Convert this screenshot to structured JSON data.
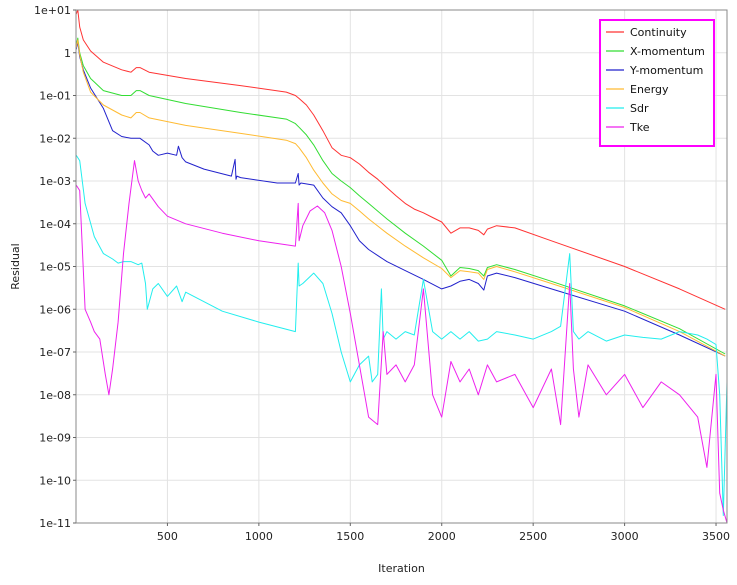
{
  "chart_data": {
    "type": "line",
    "title": "",
    "xlabel": "Iteration",
    "ylabel": "Residual",
    "xlim": [
      0,
      3560
    ],
    "ylim": [
      1e-11,
      10
    ],
    "yscale": "log",
    "grid": true,
    "legend_position": "top-right",
    "legend_border_color": "#ff00ff",
    "x_ticks": [
      500,
      1000,
      1500,
      2000,
      2500,
      3000,
      3500
    ],
    "x_tick_labels": [
      "500",
      "1000",
      "1500",
      "2000",
      "2500",
      "3000",
      "3500"
    ],
    "y_ticks": [
      1e-11,
      1e-10,
      1e-09,
      1e-08,
      1e-07,
      1e-06,
      1e-05,
      0.0001,
      0.001,
      0.01,
      0.1,
      1,
      10
    ],
    "y_tick_labels": [
      "1e-11",
      "1e-10",
      "1e-09",
      "1e-08",
      "1e-07",
      "1e-06",
      "1e-05",
      "1e-04",
      "1e-03",
      "1e-02",
      "1e-01",
      "1",
      "1e+01"
    ],
    "series": [
      {
        "name": "Continuity",
        "color": "#ff3333",
        "x": [
          1,
          10,
          20,
          40,
          80,
          150,
          250,
          300,
          330,
          350,
          400,
          600,
          900,
          1150,
          1200,
          1220,
          1260,
          1300,
          1350,
          1400,
          1450,
          1500,
          1550,
          1600,
          1650,
          1700,
          1750,
          1800,
          1850,
          1900,
          1950,
          2000,
          2050,
          2100,
          2150,
          2200,
          2230,
          2250,
          2300,
          2400,
          2600,
          3000,
          3300,
          3550
        ],
        "y": [
          8,
          10,
          4,
          2,
          1.1,
          0.6,
          0.4,
          0.35,
          0.45,
          0.45,
          0.35,
          0.25,
          0.17,
          0.12,
          0.1,
          0.085,
          0.06,
          0.035,
          0.015,
          0.006,
          0.004,
          0.0035,
          0.0025,
          0.0016,
          0.0011,
          0.0007,
          0.00045,
          0.0003,
          0.00022,
          0.00018,
          0.00014,
          0.00011,
          6e-05,
          8e-05,
          8e-05,
          7e-05,
          5.5e-05,
          7.5e-05,
          9e-05,
          8e-05,
          4e-05,
          1e-05,
          3e-06,
          1e-06
        ]
      },
      {
        "name": "X-momentum",
        "color": "#33dd33",
        "x": [
          1,
          10,
          20,
          40,
          80,
          150,
          250,
          300,
          330,
          350,
          400,
          600,
          900,
          1150,
          1200,
          1220,
          1260,
          1300,
          1350,
          1400,
          1450,
          1500,
          1550,
          1600,
          1700,
          1800,
          1900,
          2000,
          2050,
          2100,
          2150,
          2200,
          2230,
          2250,
          2300,
          2400,
          2600,
          3000,
          3300,
          3550
        ],
        "y": [
          1.5,
          2.2,
          1,
          0.5,
          0.25,
          0.13,
          0.1,
          0.1,
          0.13,
          0.13,
          0.1,
          0.065,
          0.04,
          0.028,
          0.022,
          0.018,
          0.012,
          0.007,
          0.003,
          0.0015,
          0.001,
          0.0007,
          0.00045,
          0.0003,
          0.00013,
          6e-05,
          3e-05,
          1.4e-05,
          6e-06,
          9.5e-06,
          9e-06,
          8e-06,
          6e-06,
          9.5e-06,
          1.1e-05,
          8.5e-06,
          4.5e-06,
          1.2e-06,
          3.5e-07,
          9e-08
        ]
      },
      {
        "name": "Y-momentum",
        "color": "#2222cc",
        "x": [
          1,
          10,
          20,
          40,
          80,
          150,
          200,
          250,
          300,
          350,
          400,
          420,
          450,
          500,
          550,
          560,
          580,
          600,
          700,
          850,
          870,
          875,
          880,
          900,
          1100,
          1200,
          1215,
          1220,
          1230,
          1300,
          1350,
          1400,
          1450,
          1500,
          1550,
          1600,
          1700,
          1800,
          1900,
          2000,
          2050,
          2100,
          2150,
          2200,
          2230,
          2250,
          2300,
          2400,
          2600,
          3000,
          3300,
          3550
        ],
        "y": [
          1.2,
          1.8,
          0.8,
          0.4,
          0.15,
          0.05,
          0.015,
          0.011,
          0.01,
          0.01,
          0.007,
          0.005,
          0.004,
          0.0045,
          0.004,
          0.0065,
          0.0035,
          0.0028,
          0.0019,
          0.0013,
          0.0032,
          0.0011,
          0.0013,
          0.0012,
          0.0009,
          0.0009,
          0.0015,
          0.0008,
          0.0009,
          0.0008,
          0.0004,
          0.00025,
          0.00018,
          9e-05,
          4e-05,
          2.5e-05,
          1.3e-05,
          8e-06,
          5e-06,
          3e-06,
          3.5e-06,
          4.5e-06,
          5e-06,
          4e-06,
          2.8e-06,
          6e-06,
          7e-06,
          5.5e-06,
          3e-06,
          9e-07,
          2.5e-07,
          8e-08
        ]
      },
      {
        "name": "Energy",
        "color": "#ffbb33",
        "x": [
          1,
          10,
          20,
          40,
          80,
          150,
          250,
          300,
          330,
          350,
          400,
          600,
          900,
          1150,
          1200,
          1220,
          1260,
          1300,
          1350,
          1400,
          1450,
          1500,
          1550,
          1600,
          1700,
          1800,
          1900,
          2000,
          2050,
          2100,
          2150,
          2200,
          2230,
          2250,
          2300,
          2400,
          2600,
          3000,
          3300,
          3550
        ],
        "y": [
          1.3,
          2,
          0.9,
          0.35,
          0.12,
          0.06,
          0.035,
          0.03,
          0.04,
          0.04,
          0.03,
          0.02,
          0.013,
          0.009,
          0.0075,
          0.006,
          0.0035,
          0.0018,
          0.0009,
          0.0005,
          0.00035,
          0.0003,
          0.0002,
          0.00013,
          6e-05,
          3e-05,
          1.6e-05,
          9e-06,
          5.5e-06,
          8e-06,
          7.5e-06,
          7e-06,
          5e-06,
          8.5e-06,
          1e-05,
          7.5e-06,
          4e-06,
          1.1e-06,
          3e-07,
          8e-08
        ]
      },
      {
        "name": "Sdr",
        "color": "#22eeee",
        "x": [
          1,
          20,
          50,
          100,
          150,
          200,
          230,
          260,
          300,
          340,
          360,
          380,
          390,
          420,
          450,
          500,
          550,
          580,
          600,
          800,
          1000,
          1200,
          1215,
          1220,
          1240,
          1300,
          1350,
          1400,
          1450,
          1500,
          1550,
          1600,
          1620,
          1650,
          1670,
          1680,
          1700,
          1750,
          1800,
          1850,
          1900,
          1950,
          2000,
          2050,
          2100,
          2150,
          2200,
          2250,
          2300,
          2400,
          2500,
          2600,
          2650,
          2700,
          2720,
          2750,
          2800,
          2900,
          3000,
          3100,
          3200,
          3300,
          3400,
          3450,
          3500,
          3520,
          3540,
          3560
        ],
        "y": [
          0.004,
          0.003,
          0.0003,
          5e-05,
          2e-05,
          1.5e-05,
          1.2e-05,
          1.3e-05,
          1.3e-05,
          1.1e-05,
          1.2e-05,
          4e-06,
          1e-06,
          3e-06,
          4e-06,
          2e-06,
          3.5e-06,
          1.5e-06,
          2.5e-06,
          9e-07,
          5e-07,
          3e-07,
          1.2e-05,
          3.5e-06,
          4e-06,
          7e-06,
          4e-06,
          8e-07,
          1e-07,
          2e-08,
          5e-08,
          8e-08,
          2e-08,
          3e-08,
          3e-06,
          2e-07,
          3e-07,
          2e-07,
          3e-07,
          2.5e-07,
          5e-06,
          3e-07,
          2e-07,
          3e-07,
          2e-07,
          3e-07,
          1.8e-07,
          2e-07,
          3e-07,
          2.5e-07,
          2e-07,
          3e-07,
          4e-07,
          2e-05,
          3e-07,
          2e-07,
          3e-07,
          1.8e-07,
          2.5e-07,
          2.2e-07,
          2e-07,
          3e-07,
          2.5e-07,
          2e-07,
          1.5e-07,
          1e-08,
          1.5e-11,
          2e-08
        ]
      },
      {
        "name": "Tke",
        "color": "#ee22ee",
        "x": [
          1,
          20,
          50,
          80,
          100,
          130,
          160,
          180,
          200,
          230,
          260,
          290,
          320,
          340,
          360,
          380,
          400,
          450,
          500,
          600,
          800,
          1000,
          1200,
          1215,
          1220,
          1240,
          1280,
          1320,
          1360,
          1400,
          1450,
          1500,
          1550,
          1600,
          1650,
          1680,
          1700,
          1750,
          1800,
          1850,
          1900,
          1950,
          2000,
          2050,
          2100,
          2150,
          2200,
          2250,
          2300,
          2400,
          2500,
          2600,
          2650,
          2700,
          2720,
          2750,
          2800,
          2900,
          3000,
          3100,
          3200,
          3300,
          3400,
          3450,
          3500,
          3520,
          3540,
          3560
        ],
        "y": [
          0.0008,
          0.0006,
          1e-06,
          5e-07,
          3e-07,
          2e-07,
          3e-08,
          1e-08,
          4e-08,
          5e-07,
          2e-05,
          0.0003,
          0.003,
          0.001,
          0.0006,
          0.0004,
          0.0005,
          0.00025,
          0.00015,
          0.0001,
          6e-05,
          4e-05,
          3e-05,
          0.0003,
          4e-05,
          9e-05,
          0.0002,
          0.00026,
          0.00018,
          7e-05,
          1e-05,
          8e-07,
          5e-08,
          3e-09,
          2e-09,
          3e-07,
          3e-08,
          5e-08,
          2e-08,
          5e-08,
          3e-06,
          1e-08,
          3e-09,
          6e-08,
          2e-08,
          4e-08,
          1e-08,
          5e-08,
          2e-08,
          3e-08,
          5e-09,
          4e-08,
          2e-09,
          4e-06,
          4e-08,
          3e-09,
          5e-08,
          1e-08,
          3e-08,
          5e-09,
          2e-08,
          1e-08,
          3e-09,
          2e-10,
          3e-08,
          5e-11,
          2e-11,
          1e-11
        ]
      }
    ]
  }
}
